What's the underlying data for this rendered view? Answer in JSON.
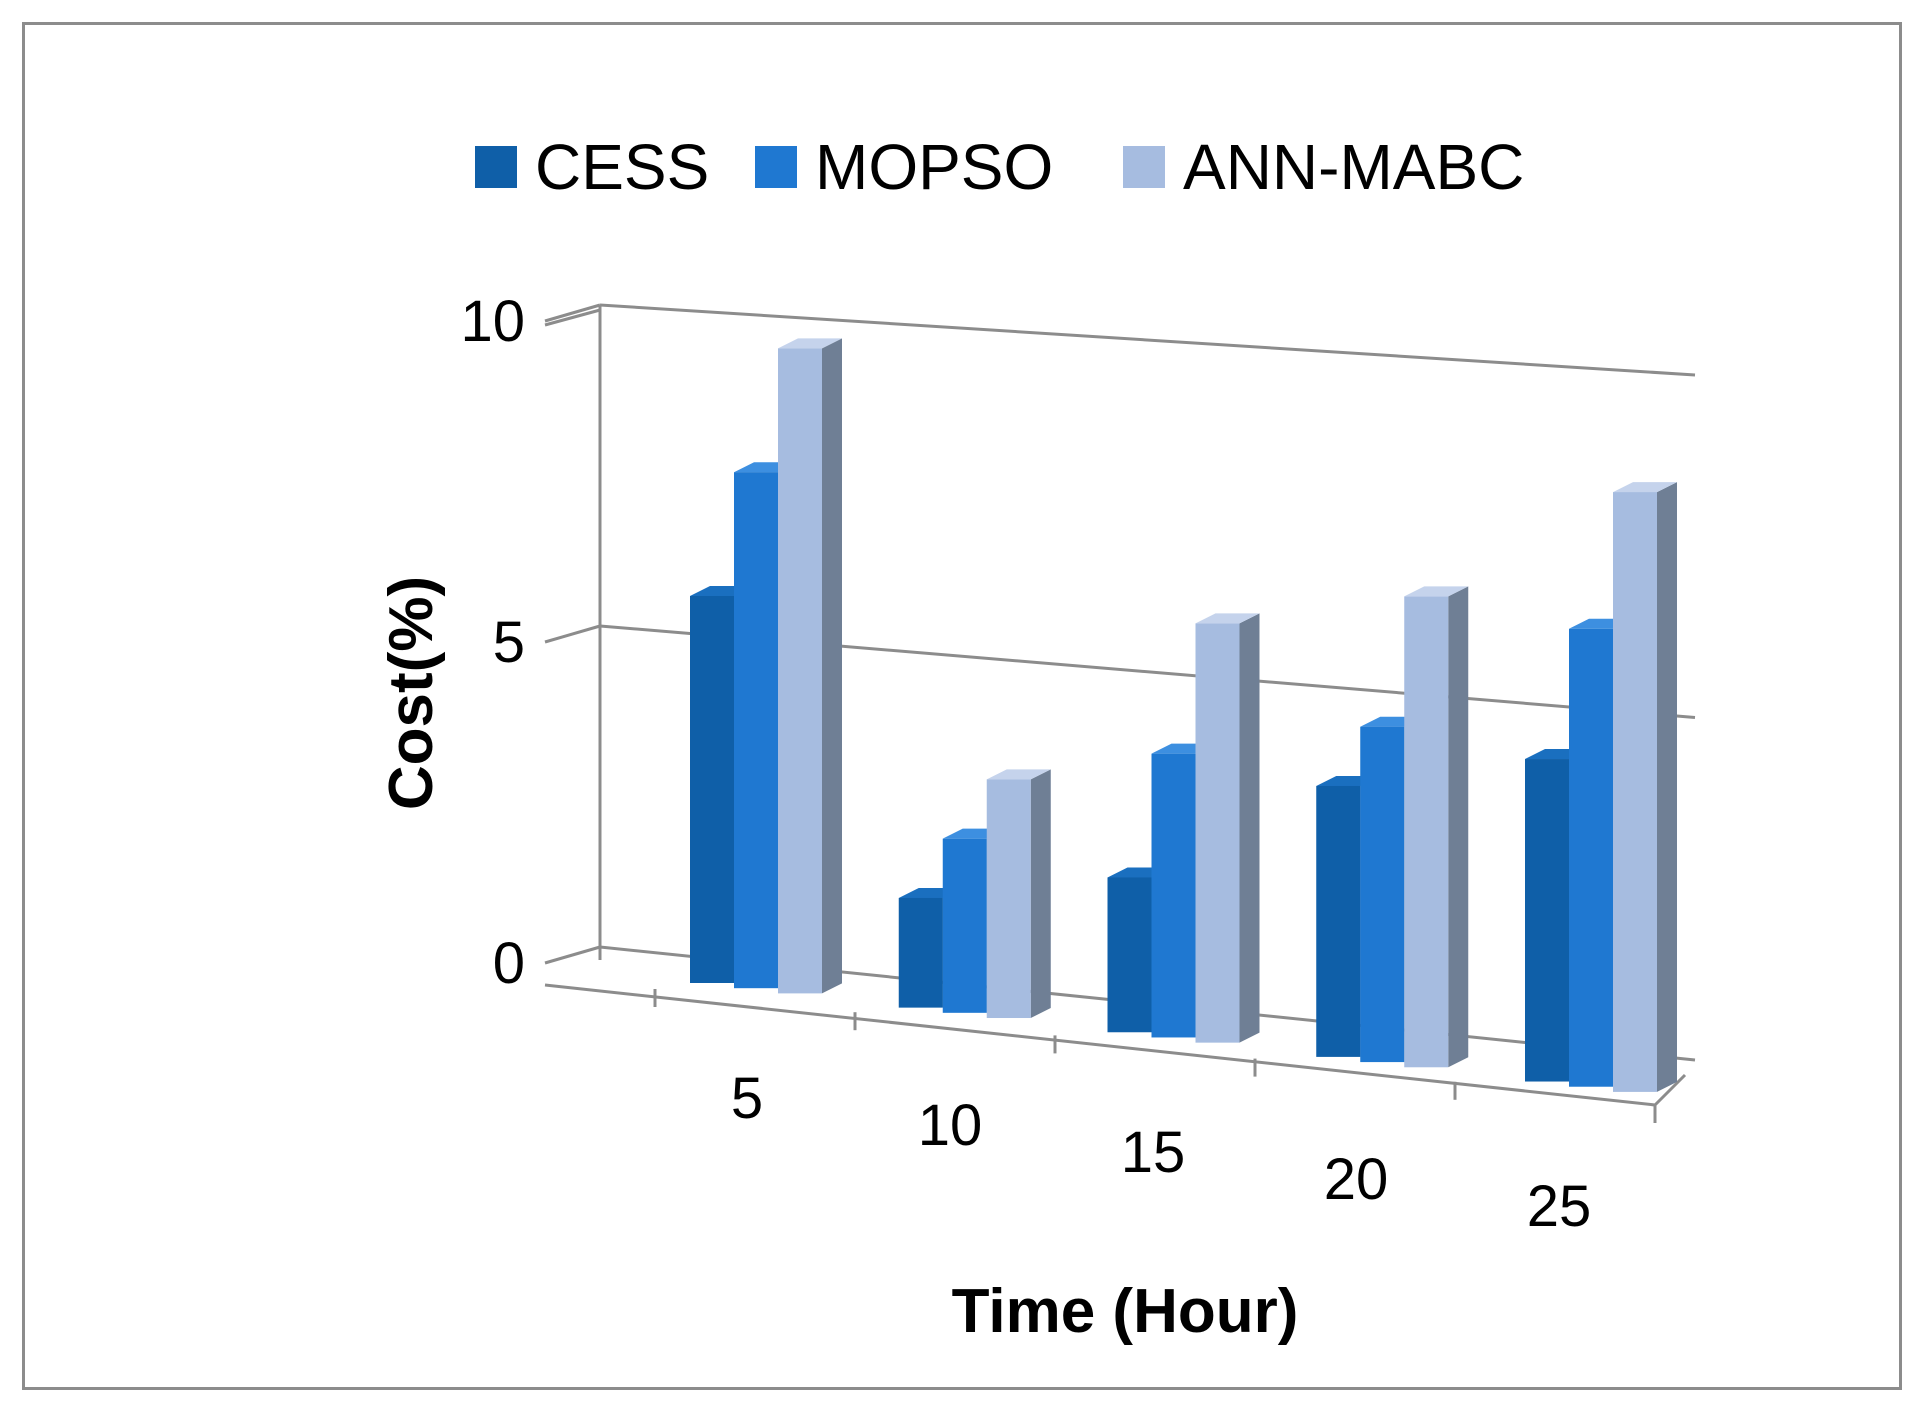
{
  "chart_data": {
    "type": "bar",
    "style": "3d-clustered-column",
    "categories": [
      "5",
      "10",
      "15",
      "20",
      "25"
    ],
    "series": [
      {
        "name": "CESS",
        "values": [
          6,
          1.7,
          2.4,
          4.2,
          5.0
        ],
        "color": "#0f5fa8"
      },
      {
        "name": "MOPSO",
        "values": [
          8,
          2.7,
          4.4,
          5.2,
          7.1
        ],
        "color": "#1f78d1"
      },
      {
        "name": "ANN-MABC",
        "values": [
          10,
          3.7,
          6.5,
          7.3,
          9.3
        ],
        "color": "#a6bce0"
      }
    ],
    "title": "",
    "xlabel": "Time (Hour)",
    "ylabel": "Cost(%)",
    "ylim": [
      0,
      10
    ],
    "yticks": [
      "0",
      "5",
      "10"
    ],
    "grid": true,
    "legend_position": "top"
  },
  "colors": {
    "gridline": "#8c8c8c",
    "frame": "#8c8c8c",
    "side_shade_CESS": "#0a4680",
    "side_shade_MOPSO": "#155ea8",
    "side_shade_ANN-MABC": "#6f7f95",
    "top_shade_CESS": "#1a6fbf",
    "top_shade_MOPSO": "#3d8fe0",
    "top_shade_ANN-MABC": "#c5d3ec"
  }
}
